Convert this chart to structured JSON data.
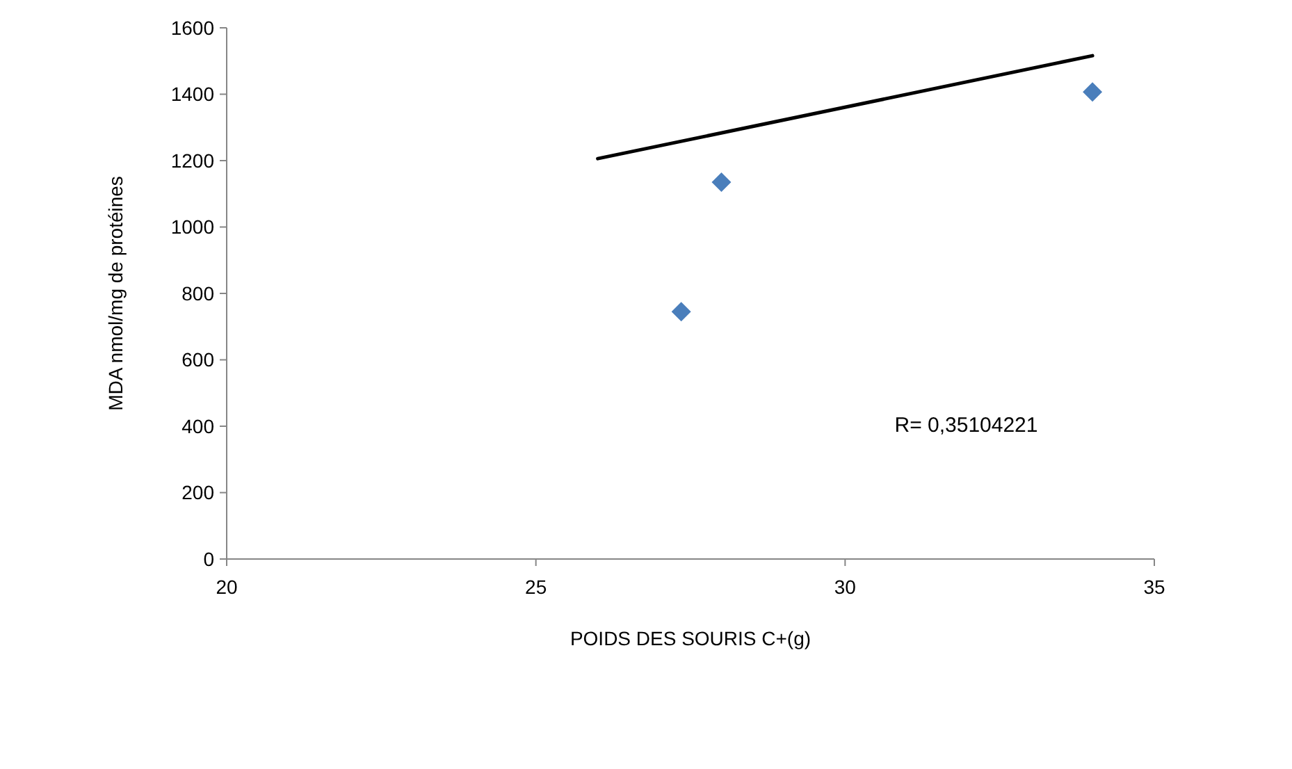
{
  "chart_data": {
    "type": "scatter",
    "xlabel": "POIDS DES SOURIS  C+(g)",
    "ylabel": "MDA nmol/mg de protéines",
    "xlim": [
      20,
      35
    ],
    "xticks": [
      20,
      25,
      30,
      35
    ],
    "ylim": [
      0,
      1600
    ],
    "yticks": [
      0,
      200,
      400,
      600,
      800,
      1000,
      1200,
      1400,
      1600
    ],
    "grid": false,
    "marker": "diamond",
    "series": [
      {
        "color": "#4a7ebb",
        "x": [
          27.35,
          28.0,
          34.0
        ],
        "values": [
          745,
          1135,
          1407
        ]
      },
      {
        "type": "line",
        "color": "#000000",
        "x": [
          26.0,
          34.0
        ],
        "values": [
          1206,
          1516
        ],
        "marker": "none",
        "line_style": "solid"
      }
    ],
    "annotations": [
      "R=  0,35104221"
    ]
  }
}
